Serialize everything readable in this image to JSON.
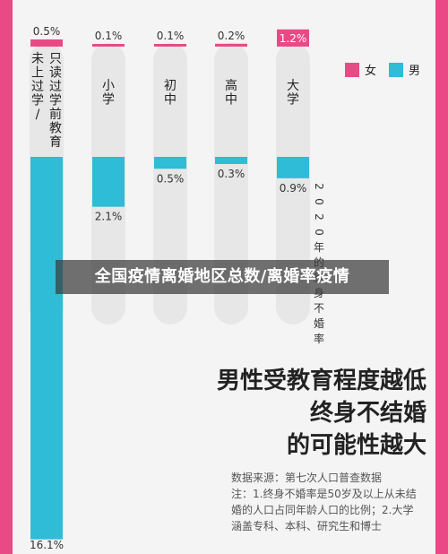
{
  "banner": "全国疫情离婚地区总数/离婚率疫情",
  "headline": {
    "line1": "男性受教育程度越低",
    "line2": "终身不结婚",
    "line3": "的可能性越大"
  },
  "source": {
    "line1": "数据来源：第七次人口普查数据",
    "line2": "注：1.终身不婚率是50岁及以上从未结",
    "line3": "婚的人口占同年龄人口的比例；2.大学",
    "line4": "涵盖专科、本科、研究生和博士"
  },
  "colors": {
    "female": "#e94a86",
    "male": "#2ebcd6",
    "track": "#e7e7e7",
    "background": "#f4f4f4",
    "accent_bar": "#e94a86"
  },
  "chart_data": {
    "type": "bar",
    "title": "2020年的终身不婚率",
    "categories": [
      "未上过学/只读过学前教育",
      "小学",
      "初中",
      "高中",
      "大学"
    ],
    "category_labels": [
      [
        "未上过学/",
        "只读过学前教育"
      ],
      [
        "小学"
      ],
      [
        "初中"
      ],
      [
        "高中"
      ],
      [
        "大学"
      ]
    ],
    "series": [
      {
        "name": "女",
        "values": [
          0.5,
          0.1,
          0.1,
          0.2,
          1.2
        ],
        "labels": [
          "0.5%",
          "0.1%",
          "0.1%",
          "0.2%",
          "1.2%"
        ]
      },
      {
        "name": "男",
        "values": [
          16.1,
          2.1,
          0.5,
          0.3,
          0.9
        ],
        "labels": [
          "16.1%",
          "2.1%",
          "0.5%",
          "0.3%",
          "0.9%"
        ]
      }
    ],
    "unit": "%",
    "legend_position": "top-right",
    "grid": false
  }
}
